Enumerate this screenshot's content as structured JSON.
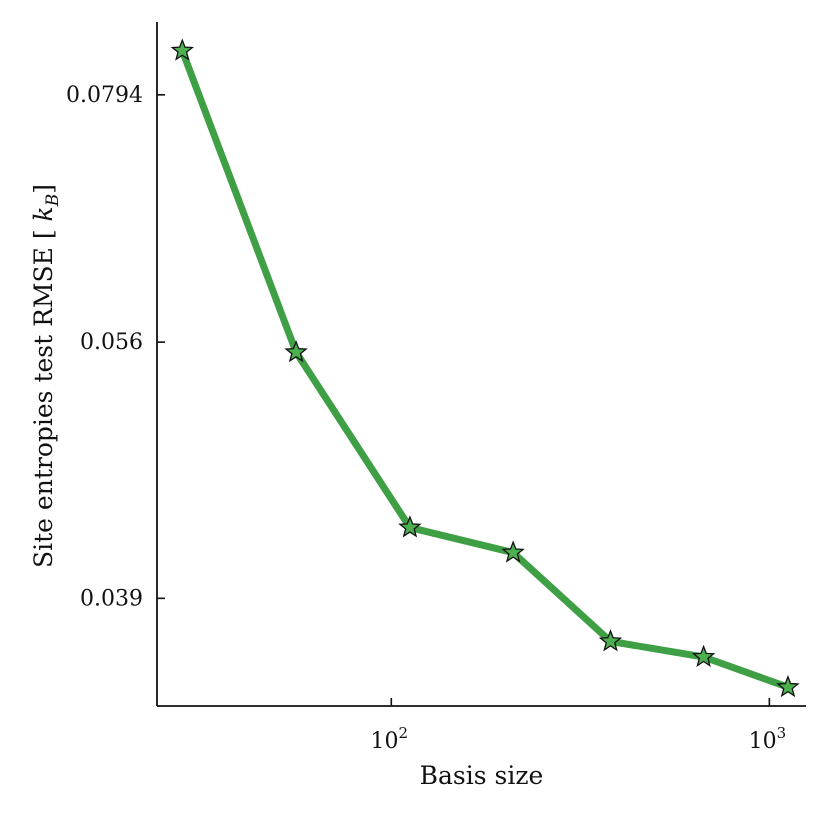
{
  "chart_data": {
    "type": "line",
    "xlabel": "Basis size",
    "ylabel": "Site entropies test RMSE",
    "ylabel_unit": "[k_B]",
    "xscale": "log",
    "yscale": "log",
    "xlim": [
      24,
      1250
    ],
    "ylim": [
      0.0335,
      0.088
    ],
    "grid": false,
    "x_ticks": [
      {
        "value": 100,
        "base": "10",
        "exp": "2"
      },
      {
        "value": 1000,
        "base": "10",
        "exp": "3"
      }
    ],
    "y_ticks": [
      {
        "value": 0.0794,
        "label": "0.0794"
      },
      {
        "value": 0.056,
        "label": "0.056"
      },
      {
        "value": 0.039,
        "label": "0.039"
      }
    ],
    "series": [
      {
        "color": "#3f9f45",
        "marker": "star",
        "marker_color": "#4caf50",
        "x": [
          28,
          56,
          112,
          210,
          380,
          670,
          1120
        ],
        "y": [
          0.0845,
          0.0552,
          0.0431,
          0.0416,
          0.0367,
          0.0359,
          0.0344
        ]
      }
    ]
  }
}
